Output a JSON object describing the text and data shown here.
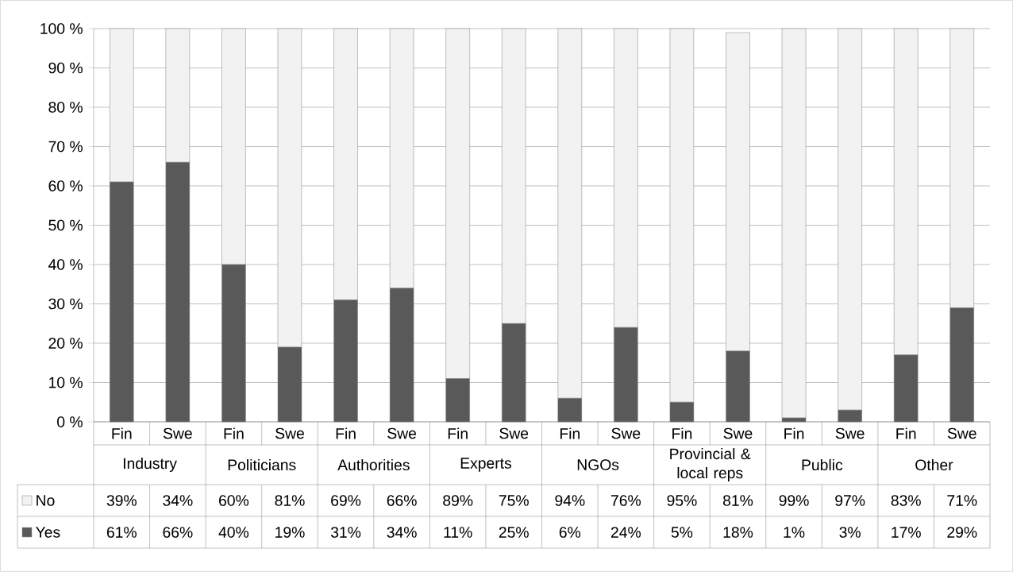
{
  "chart_data": {
    "type": "bar",
    "stacked": true,
    "categories": [
      "Fin",
      "Swe",
      "Fin",
      "Swe",
      "Fin",
      "Swe",
      "Fin",
      "Swe",
      "Fin",
      "Swe",
      "Fin",
      "Swe",
      "Fin",
      "Swe",
      "Fin",
      "Swe"
    ],
    "annotations": [
      "Industry",
      "Politicians",
      "Authorities",
      "Experts",
      "NGOs",
      "Provincial & local reps",
      "Public",
      "Other"
    ],
    "series": [
      {
        "name": "Yes",
        "color": "#595959",
        "values": [
          61,
          66,
          40,
          19,
          31,
          34,
          11,
          25,
          6,
          24,
          5,
          18,
          1,
          3,
          17,
          29
        ],
        "value_labels": [
          "61%",
          "66%",
          "40%",
          "19%",
          "31%",
          "34%",
          "11%",
          "25%",
          "6%",
          "24%",
          "5%",
          "18%",
          "1%",
          "3%",
          "17%",
          "29%"
        ]
      },
      {
        "name": "No",
        "color": "#f2f2f2",
        "values": [
          39,
          34,
          60,
          81,
          69,
          66,
          89,
          75,
          94,
          76,
          95,
          81,
          99,
          97,
          83,
          71
        ],
        "value_labels": [
          "39%",
          "34%",
          "60%",
          "81%",
          "69%",
          "66%",
          "89%",
          "75%",
          "94%",
          "76%",
          "95%",
          "81%",
          "99%",
          "97%",
          "83%",
          "71%"
        ]
      }
    ],
    "ylim": [
      0,
      100
    ],
    "yticks": [
      {
        "value": 0,
        "label": "0 %"
      },
      {
        "value": 10,
        "label": "10 %"
      },
      {
        "value": 20,
        "label": "20 %"
      },
      {
        "value": 30,
        "label": "30 %"
      },
      {
        "value": 40,
        "label": "40 %"
      },
      {
        "value": 50,
        "label": "50 %"
      },
      {
        "value": 60,
        "label": "60 %"
      },
      {
        "value": 70,
        "label": "70 %"
      },
      {
        "value": 80,
        "label": "80 %"
      },
      {
        "value": 90,
        "label": "90 %"
      },
      {
        "value": 100,
        "label": "100 %"
      }
    ],
    "grid": "y",
    "legend": "bottom left"
  }
}
